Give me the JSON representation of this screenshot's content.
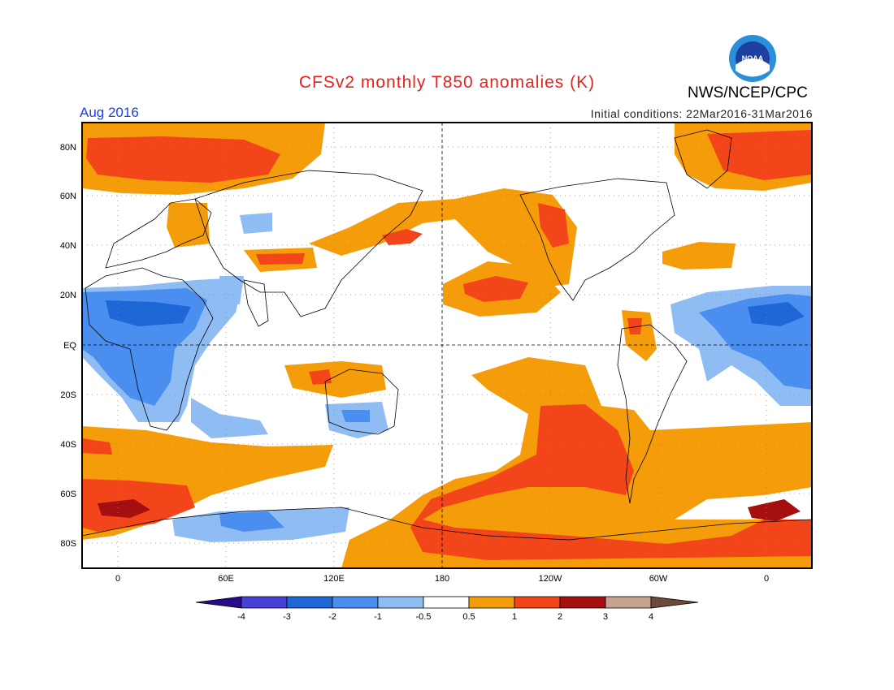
{
  "header": {
    "title": "CFSv2 monthly T850 anomalies (K)",
    "valid_month": "Aug 2016",
    "initial_conditions": "Initial conditions: 22Mar2016-31Mar2016",
    "agency": "NWS/NCEP/CPC",
    "logo_text": "NOAA"
  },
  "colors": {
    "title": "#e8231e",
    "valid_month": "#2040e0",
    "neg4": "#2a0a8c",
    "neg3": "#4a40d8",
    "neg2": "#1f66d6",
    "neg1": "#4a8ff0",
    "neg05": "#8fbcf2",
    "zero": "#ffffff",
    "pos05": "#f59c0a",
    "pos1": "#f2451a",
    "pos2": "#a60f0f",
    "pos3": "#c7a28e",
    "pos4": "#6b4a3a"
  },
  "axes": {
    "lat_labels": [
      "80N",
      "60N",
      "40N",
      "20N",
      "EQ",
      "20S",
      "40S",
      "60S",
      "80S"
    ],
    "lon_labels": [
      "0",
      "60E",
      "120E",
      "180",
      "120W",
      "60W",
      "0"
    ]
  },
  "colorbar": {
    "labels": [
      "-4",
      "-3",
      "-2",
      "-1",
      "-0.5",
      "0.5",
      "1",
      "2",
      "3",
      "4"
    ]
  }
}
